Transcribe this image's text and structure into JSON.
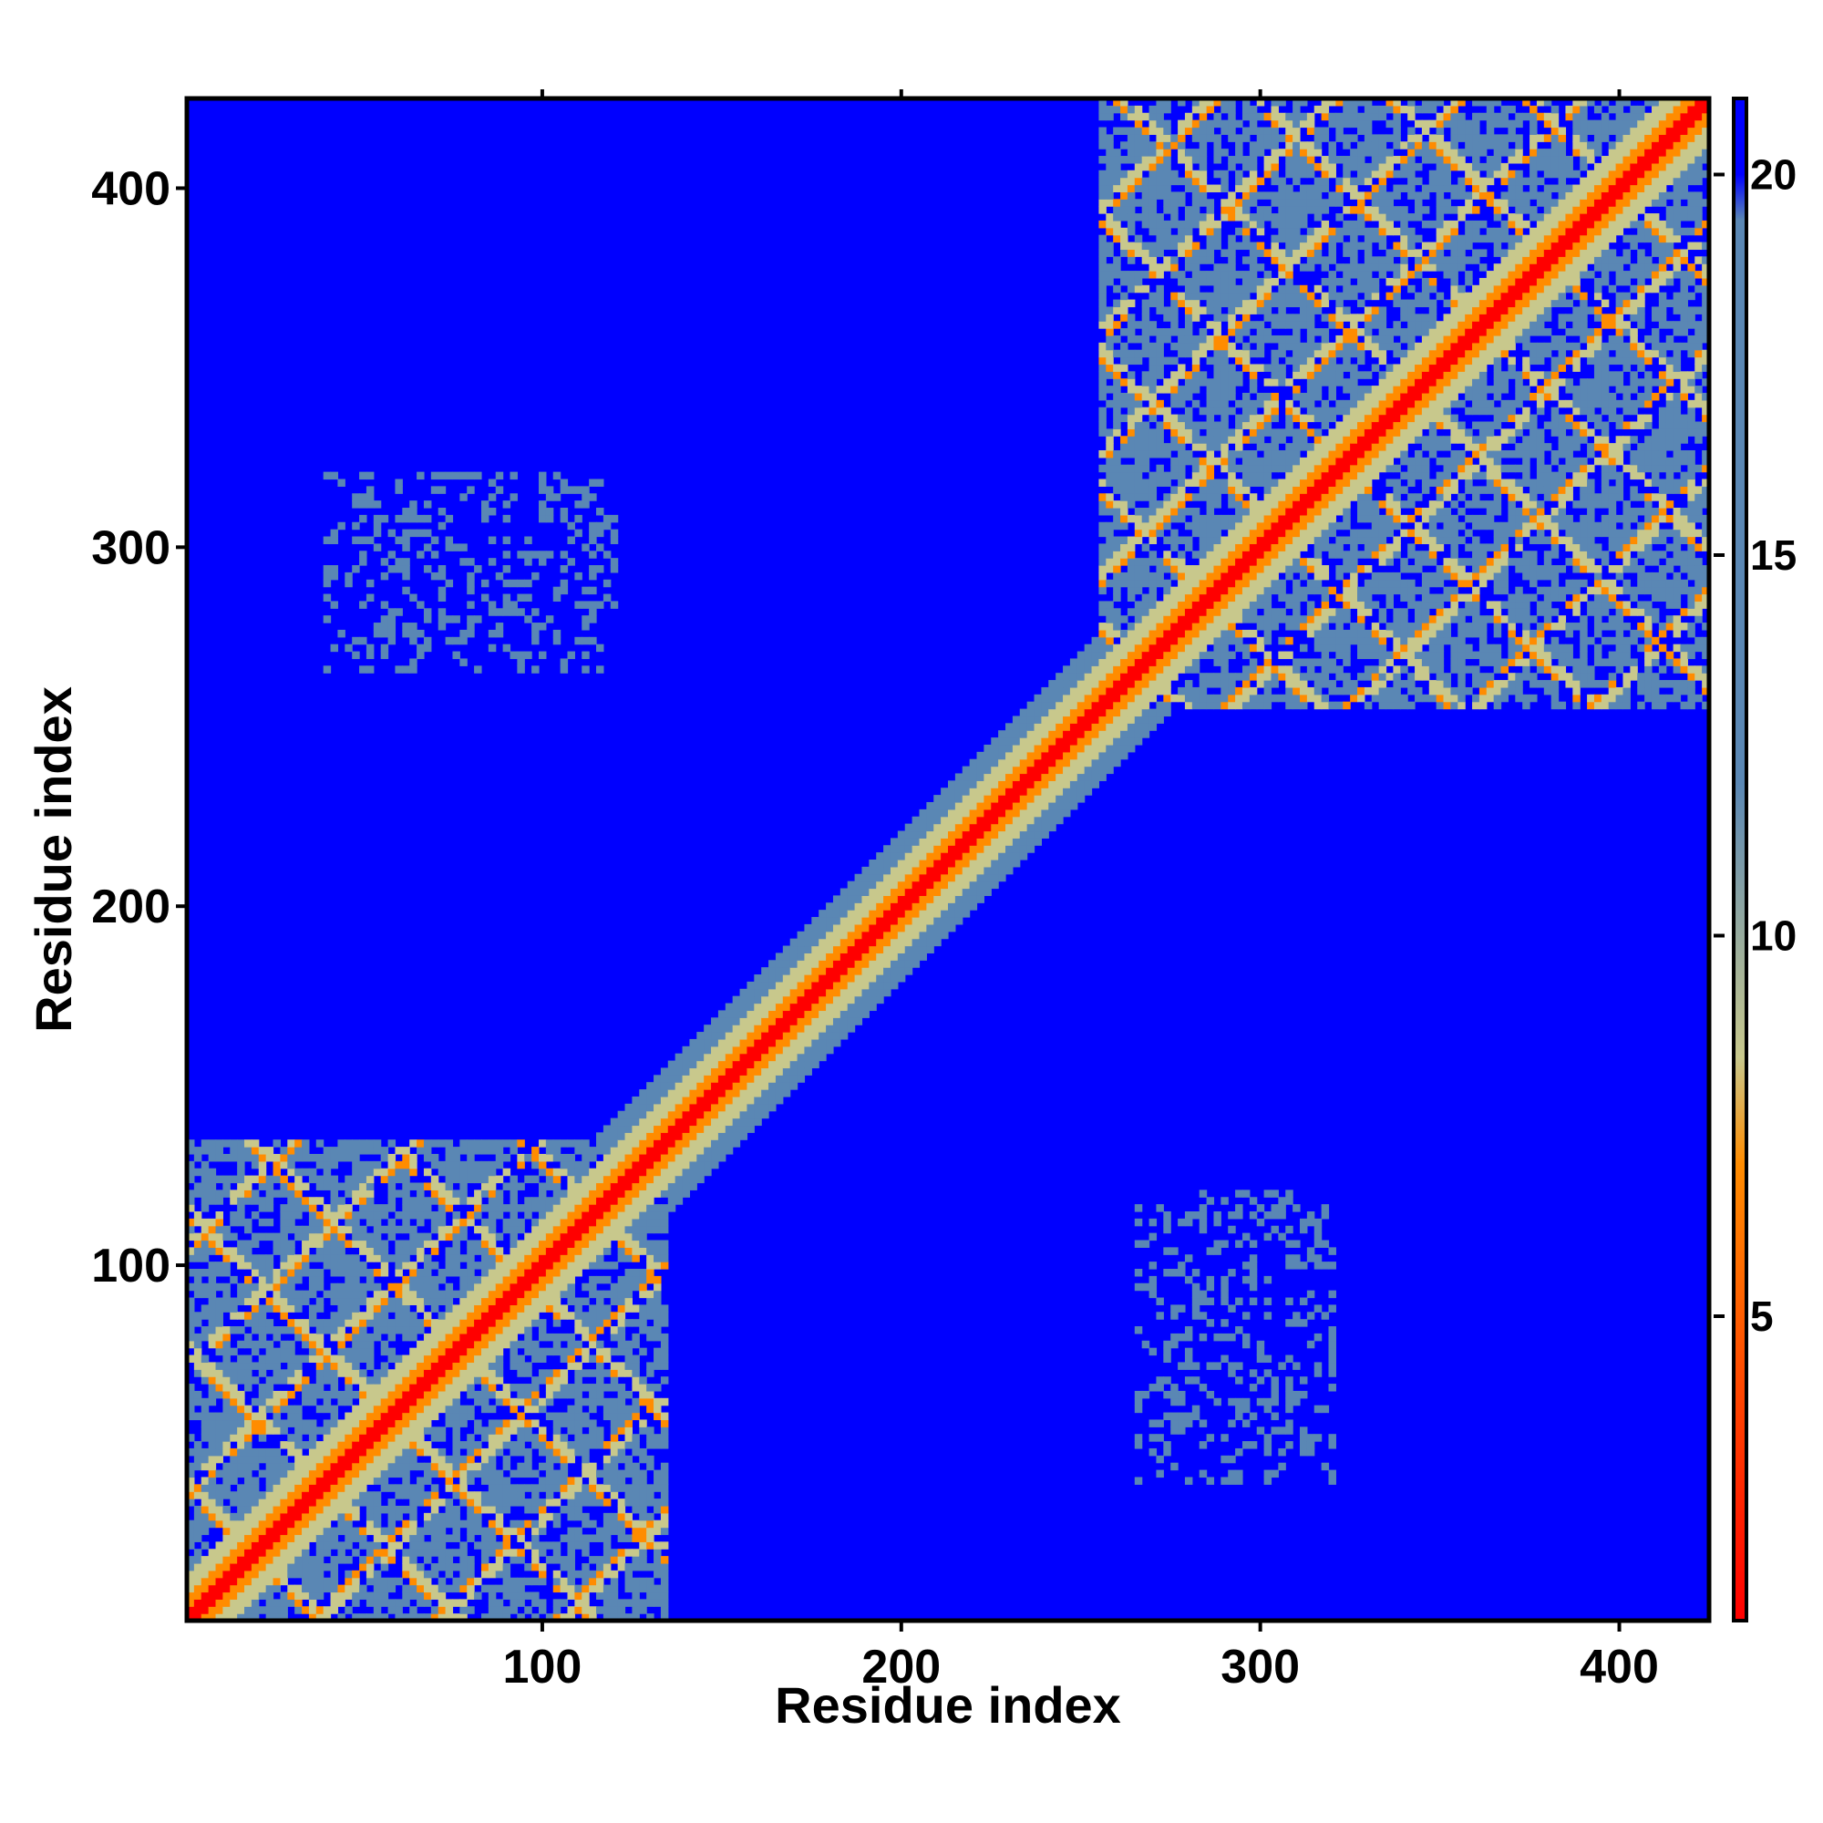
{
  "chart_data": {
    "type": "heatmap",
    "title": "",
    "xlabel": "Residue index",
    "ylabel": "Residue index",
    "xlim": [
      1,
      425
    ],
    "ylim": [
      1,
      425
    ],
    "x_ticks": [
      100,
      200,
      300,
      400
    ],
    "y_ticks": [
      100,
      200,
      300,
      400
    ],
    "colorbar": {
      "ticks": [
        5,
        10,
        15,
        20
      ],
      "range": [
        1,
        21
      ],
      "colors": {
        "near": "#ff0000",
        "mid": "#ff8c00",
        "transition": "#c8c88c",
        "far": "#5a87b4",
        "background": "#0000ff"
      }
    },
    "domains": [
      {
        "name": "",
        "start": 1,
        "end": 135
      },
      {
        "name": "",
        "start": 255,
        "end": 425
      }
    ],
    "diagonal_width": 6,
    "grid": false,
    "legend": "colorbar-right"
  }
}
